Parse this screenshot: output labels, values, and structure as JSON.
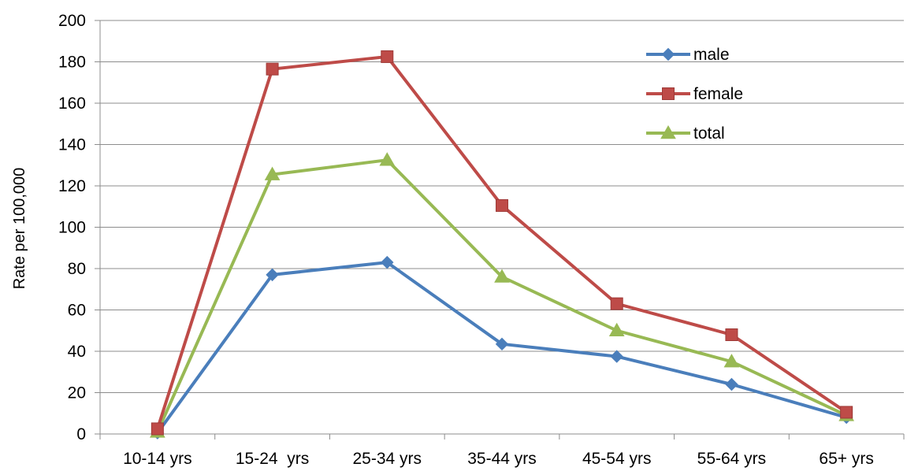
{
  "chart_data": {
    "type": "line",
    "title": "",
    "xlabel": "",
    "ylabel": "Rate per 100,000",
    "categories": [
      "10-14 yrs",
      "15-24  yrs",
      "25-34 yrs",
      "35-44 yrs",
      "45-54 yrs",
      "55-64 yrs",
      "65+ yrs"
    ],
    "ylim": [
      0,
      200
    ],
    "yticks": [
      0,
      20,
      40,
      60,
      80,
      100,
      120,
      140,
      160,
      180,
      200
    ],
    "grid": true,
    "legend_position": "top-right",
    "series": [
      {
        "name": "male",
        "color": "#4a7ebb",
        "marker": "diamond",
        "values": [
          0.5,
          77,
          83,
          43.5,
          37.5,
          24,
          8
        ]
      },
      {
        "name": "female",
        "color": "#be4b48",
        "marker": "square",
        "values": [
          2.5,
          176.5,
          182.5,
          110.5,
          63,
          48,
          10.5
        ]
      },
      {
        "name": "total",
        "color": "#98b954",
        "marker": "triangle",
        "values": [
          1,
          125.5,
          132.5,
          76,
          50,
          35,
          9
        ]
      }
    ]
  }
}
